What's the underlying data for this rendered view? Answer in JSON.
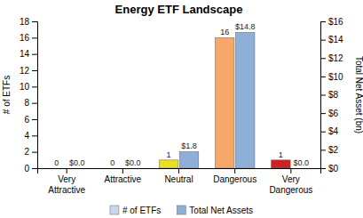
{
  "chart_data": {
    "type": "bar",
    "title": "Energy ETF Landscape",
    "categories": [
      "Very\nAttractive",
      "Attractive",
      "Neutral",
      "Dangerous",
      "Very\nDangerous"
    ],
    "series": [
      {
        "name": "# of ETFs",
        "color": "#c8d8ea",
        "colors": [
          "#c8d8ea",
          "#c8d8ea",
          "#e8e020",
          "#f5a86a",
          "#cc2222"
        ],
        "values": [
          0,
          0,
          1,
          16,
          1
        ]
      },
      {
        "name": "Total Net Assets",
        "color": "#8eb0d8",
        "axis": "y2",
        "values": [
          0.0,
          0.0,
          1.8,
          14.8,
          0.0
        ],
        "value_labels": [
          "$0.0",
          "$0.0",
          "$1.8",
          "$14.8",
          "$0.0"
        ]
      }
    ],
    "ylabel": "# of ETFs",
    "y2label": "Total Net Asset (bn)",
    "ylim": [
      0,
      18
    ],
    "yticks": [
      0,
      2,
      4,
      6,
      8,
      10,
      12,
      14,
      16,
      18
    ],
    "y2lim": [
      0,
      16
    ],
    "y2ticks": [
      {
        "value": 0,
        "label": "$0"
      },
      {
        "value": 2,
        "label": "$2"
      },
      {
        "value": 4,
        "label": "$4"
      },
      {
        "value": 6,
        "label": "$6"
      },
      {
        "value": 8,
        "label": "$8"
      },
      {
        "value": 10,
        "label": "$10"
      },
      {
        "value": 12,
        "label": "$12"
      },
      {
        "value": 14,
        "label": "$14"
      },
      {
        "value": 16,
        "label": "$16"
      }
    ],
    "data_labels": true,
    "legend": "bottom",
    "grid": false
  }
}
